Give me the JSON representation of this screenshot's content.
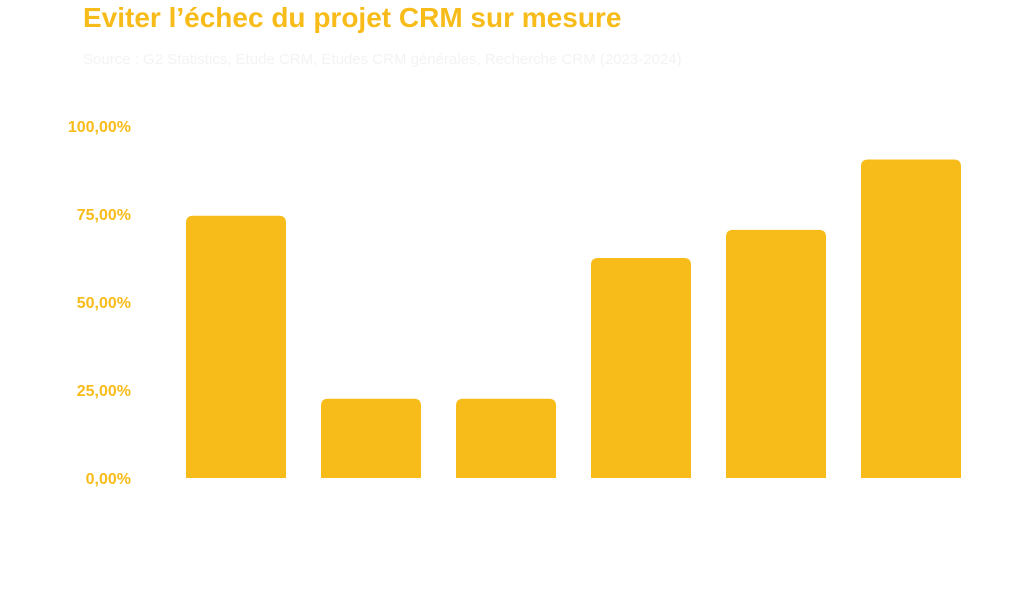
{
  "colors": {
    "accent": "#F8BC1A",
    "title": "#F8BC1A",
    "subtitle": "#F3F3F3",
    "tick": "#F8BC1A"
  },
  "chart_data": {
    "type": "bar",
    "title": "Eviter l’échec du projet CRM sur mesure",
    "subtitle": "Source : G2 Statistics, Etude CRM, Etudes CRM générales, Recherche CRM (2023-2024)",
    "categories": [
      "",
      "",
      "",
      "",
      "",
      ""
    ],
    "values": [
      74.5,
      22.5,
      22.5,
      62.5,
      70.5,
      90.5
    ],
    "ylim": [
      0,
      100
    ],
    "yticks": [
      0,
      25,
      50,
      75,
      100
    ],
    "ytick_labels": [
      "0,00%",
      "25,00%",
      "50,00%",
      "75,00%",
      "100,00%"
    ],
    "xlabel": "",
    "ylabel": "",
    "grid": false,
    "legend": "none"
  }
}
